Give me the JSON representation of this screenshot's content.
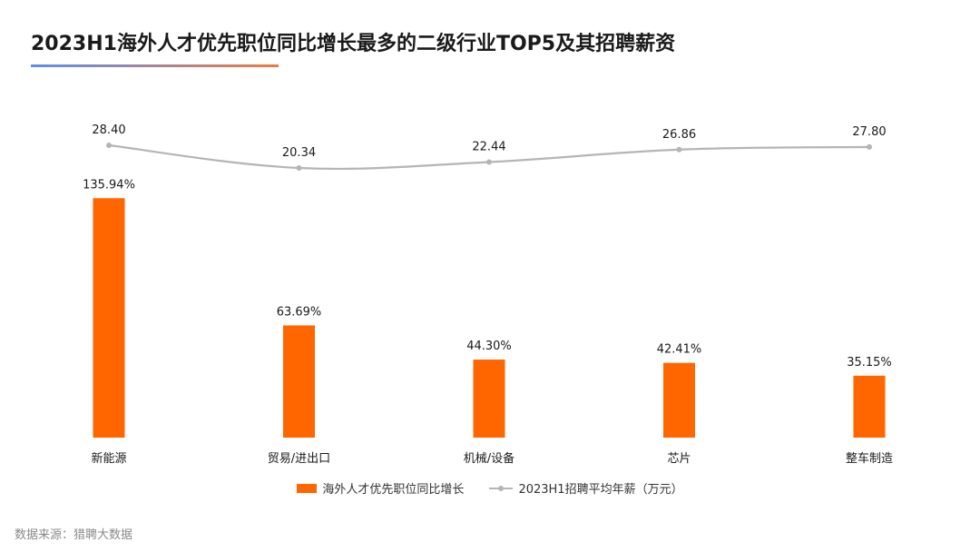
{
  "header": {
    "title": "2023H1海外人才优先职位同比增长最多的二级行业TOP5及其招聘薪资"
  },
  "source": "数据来源：猎聘大数据",
  "colors": {
    "bar": "#ff6600",
    "line": "#b5b5b5",
    "text": "#1a1a1a"
  },
  "chart_data": {
    "type": "bar",
    "categories": [
      "新能源",
      "贸易/进出口",
      "机械/设备",
      "芯片",
      "整车制造"
    ],
    "series": [
      {
        "name": "海外人才优先职位同比增长",
        "chart": "bar",
        "values": [
          135.94,
          63.69,
          44.3,
          42.41,
          35.15
        ],
        "labels": [
          "135.94%",
          "63.69%",
          "44.30%",
          "42.41%",
          "35.15%"
        ],
        "color": "#ff6600"
      },
      {
        "name": "2023H1招聘平均年薪（万元）",
        "chart": "line",
        "values": [
          28.4,
          20.34,
          22.44,
          26.86,
          27.8
        ],
        "labels": [
          "28.40",
          "20.34",
          "22.44",
          "26.86",
          "27.80"
        ],
        "color": "#b5b5b5"
      }
    ],
    "grid": false,
    "legend": "bottom-center"
  }
}
